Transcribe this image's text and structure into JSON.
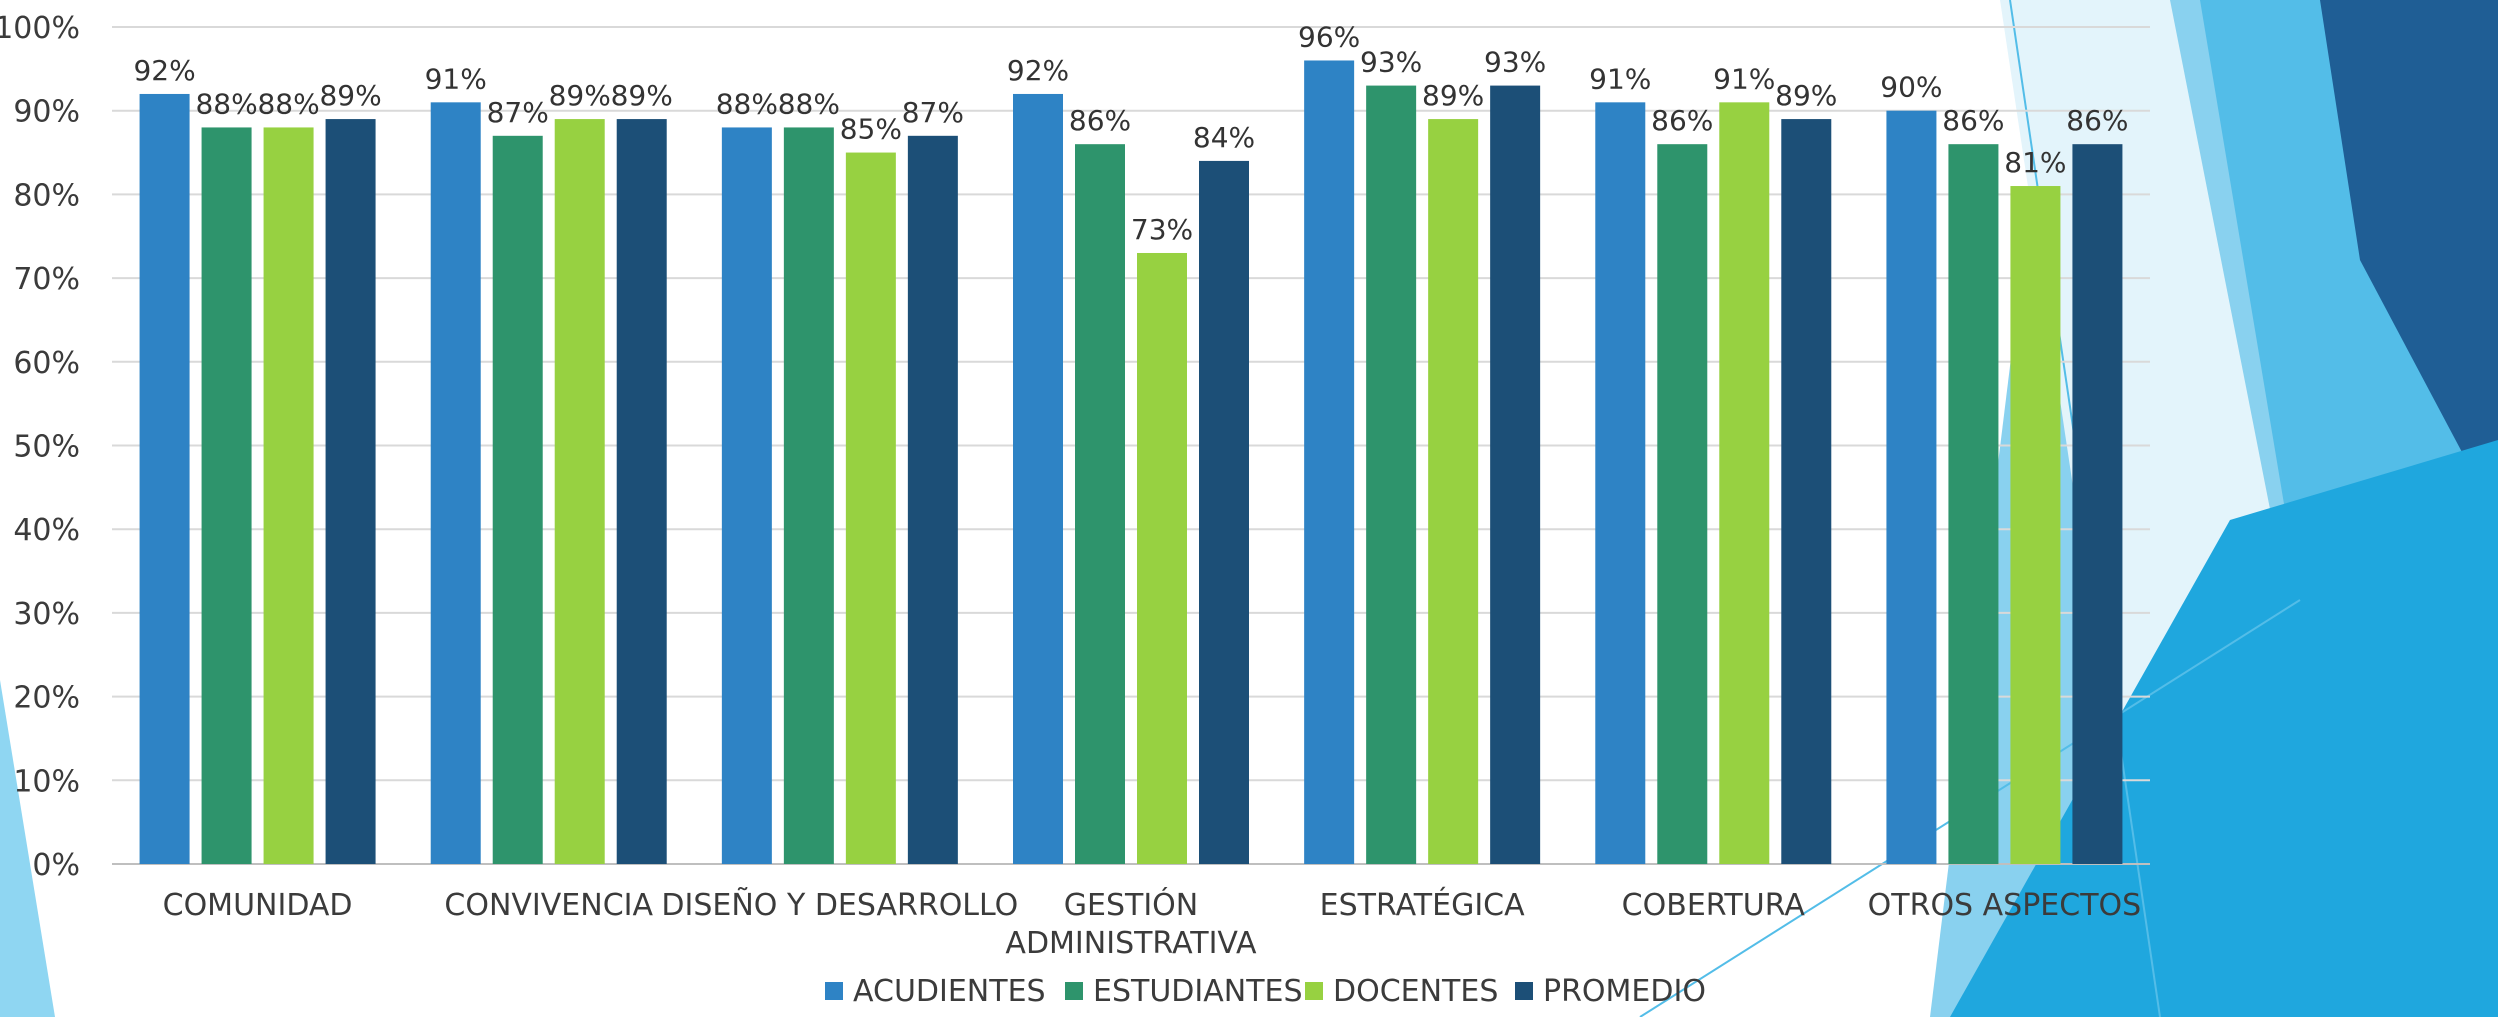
{
  "chart_data": {
    "type": "bar",
    "categories": [
      [
        "COMUNIDAD"
      ],
      [
        "CONVIVENCIA"
      ],
      [
        "DISEÑO Y DESARROLLO"
      ],
      [
        "GESTIÓN",
        "ADMINISTRATIVA"
      ],
      [
        "ESTRATÉGICA"
      ],
      [
        "COBERTURA"
      ],
      [
        "OTROS ASPECTOS"
      ]
    ],
    "series": [
      {
        "name": "ACUDIENTES",
        "color": "#2e83c5",
        "values": [
          92,
          91,
          88,
          92,
          96,
          91,
          90
        ]
      },
      {
        "name": "ESTUDIANTES",
        "color": "#2e946c",
        "values": [
          88,
          87,
          88,
          86,
          93,
          86,
          86
        ]
      },
      {
        "name": "DOCENTES",
        "color": "#97d141",
        "values": [
          88,
          89,
          85,
          73,
          89,
          91,
          81
        ]
      },
      {
        "name": "PROMEDIO",
        "color": "#1c4f77",
        "values": [
          89,
          89,
          87,
          84,
          93,
          89,
          86
        ]
      }
    ],
    "value_suffix": "%",
    "yticks": [
      "0%",
      "10%",
      "20%",
      "30%",
      "40%",
      "50%",
      "60%",
      "70%",
      "80%",
      "90%",
      "100%"
    ],
    "ylim": [
      0,
      100
    ],
    "grid": true,
    "legend_position": "bottom"
  }
}
